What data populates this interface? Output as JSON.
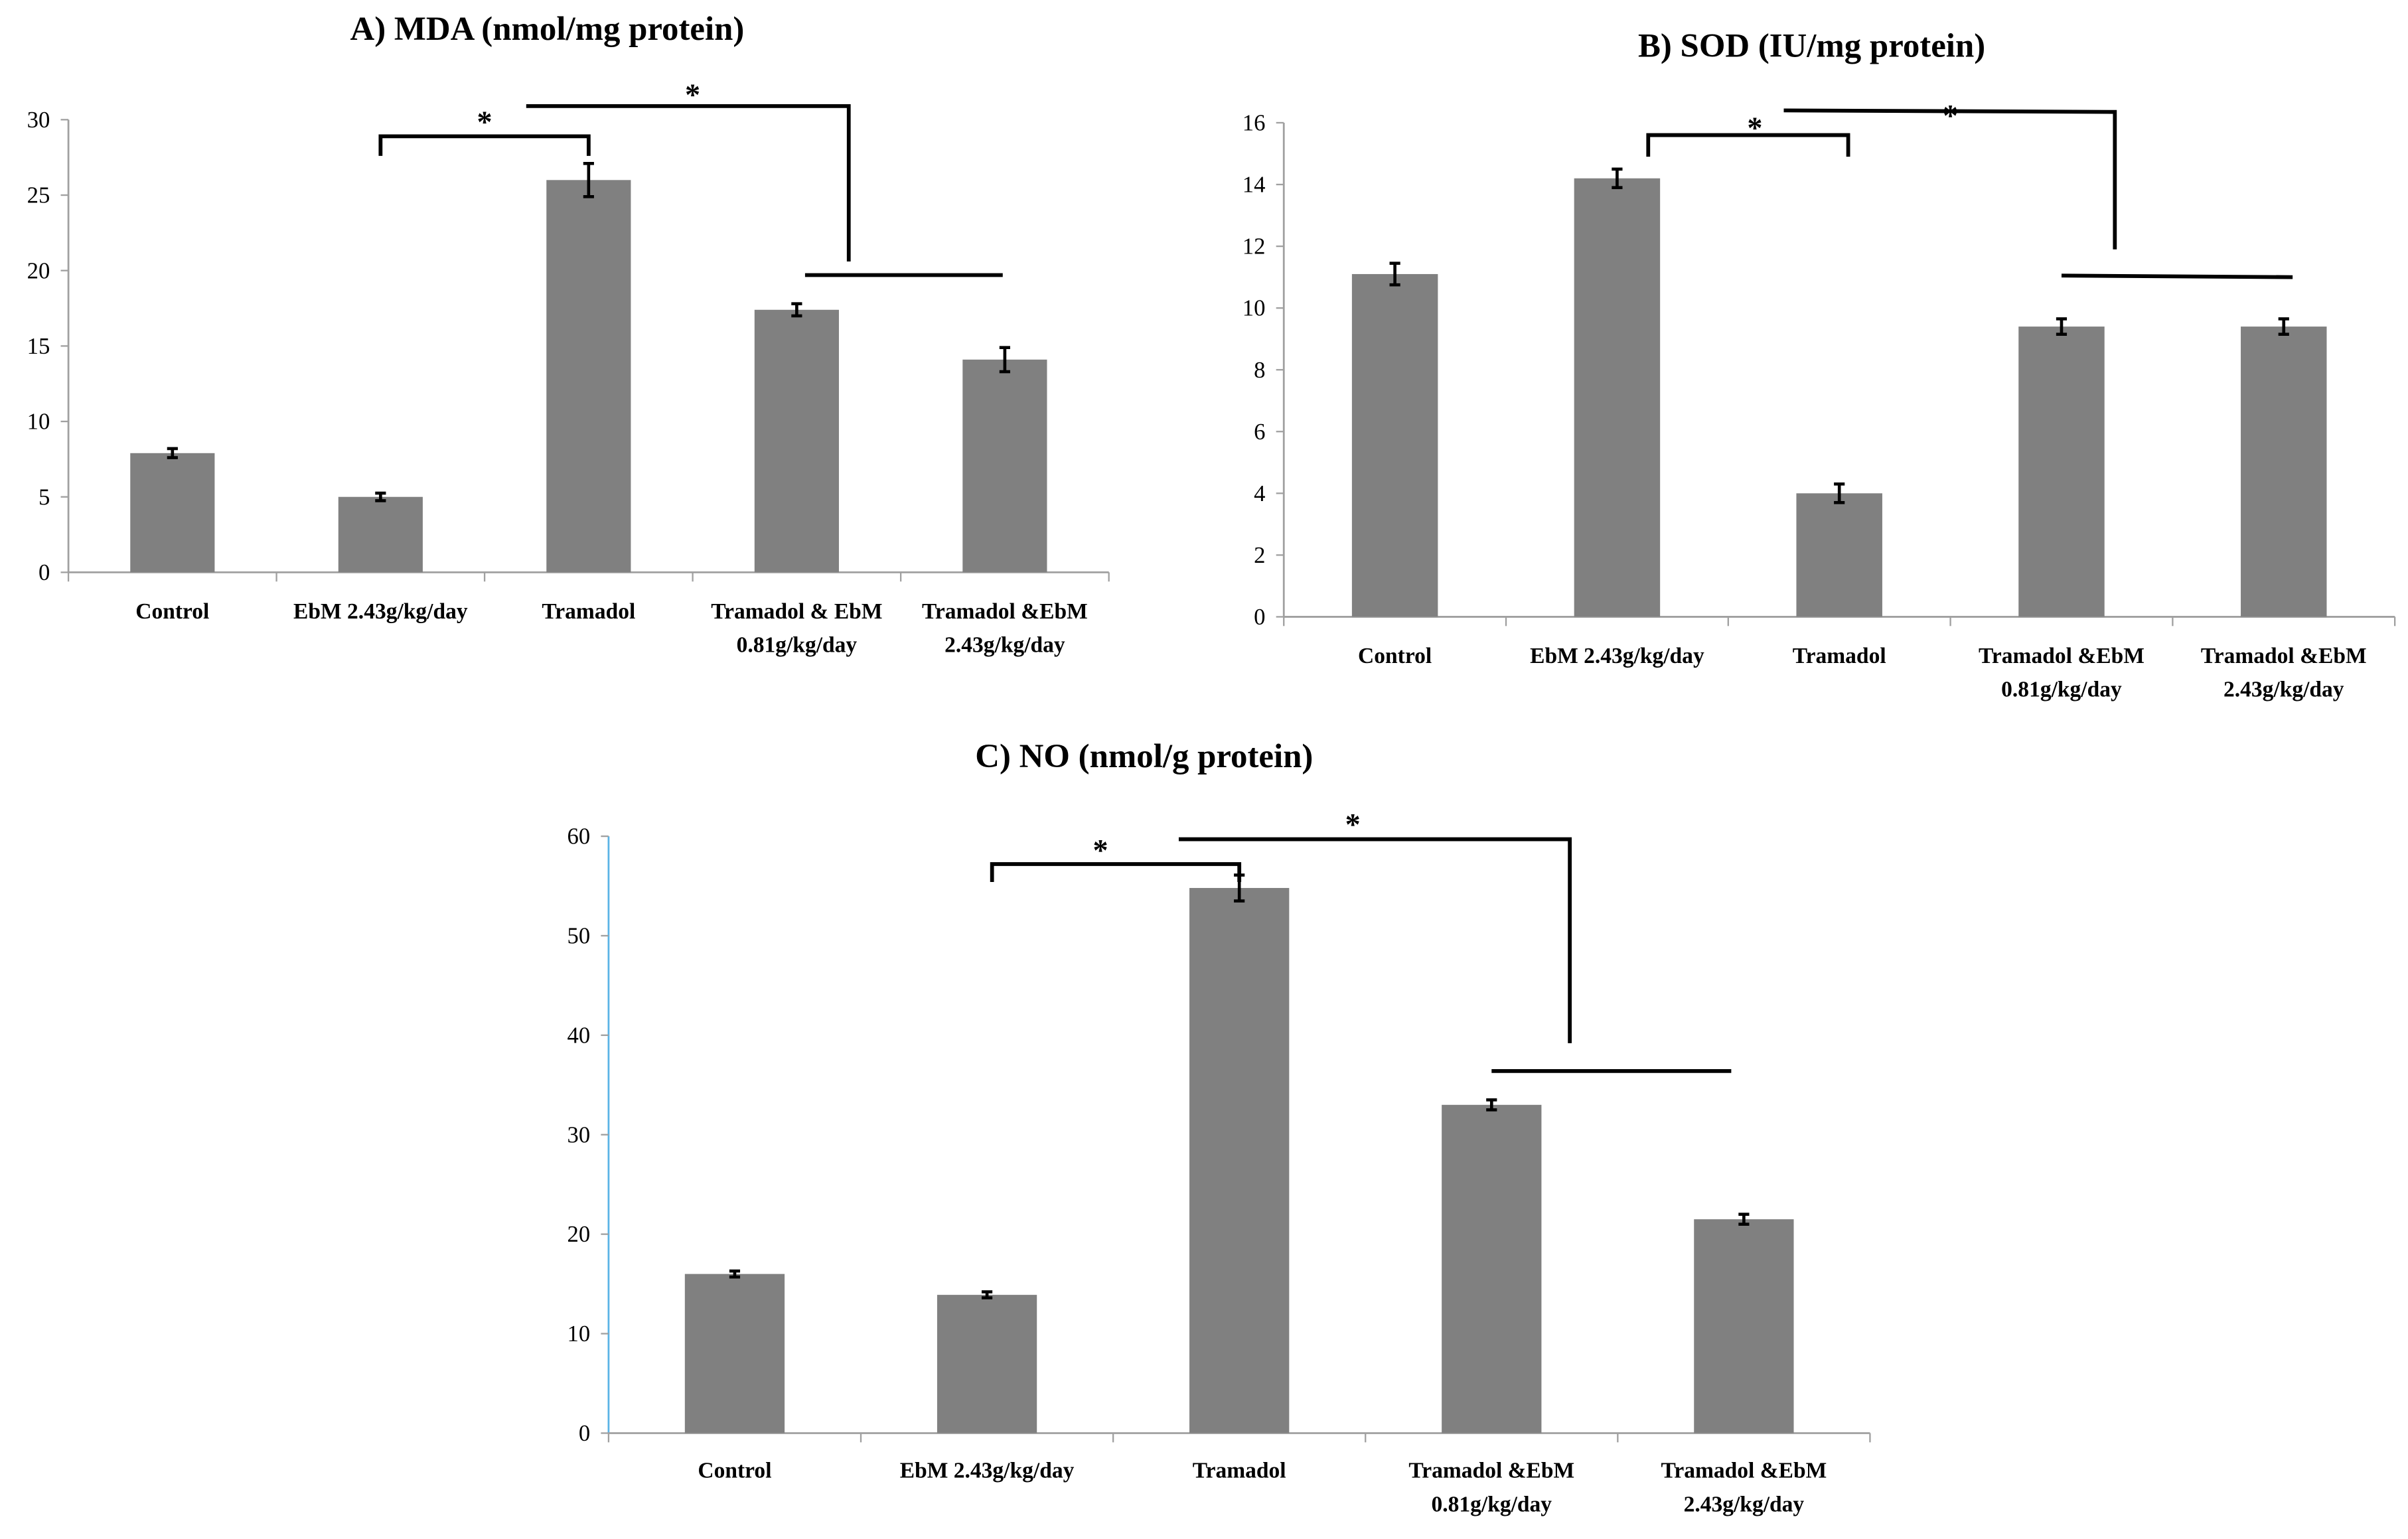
{
  "chart_data": [
    {
      "type": "bar",
      "title": "A) MDA (nmol/mg protein)",
      "xlabel": "",
      "ylabel": "",
      "categories": [
        [
          "Control"
        ],
        [
          "EbM 2.43g/kg/day"
        ],
        [
          "Tramadol"
        ],
        [
          "Tramadol & EbM",
          "0.81g/kg/day"
        ],
        [
          "Tramadol &EbM",
          "2.43g/kg/day"
        ]
      ],
      "values": [
        7.9,
        5.0,
        26.0,
        17.4,
        14.1
      ],
      "errors": [
        0.3,
        0.25,
        1.1,
        0.4,
        0.8
      ],
      "ylim": [
        0,
        30
      ],
      "yticks": [
        0,
        5,
        10,
        15,
        20,
        25,
        30
      ],
      "grid": false,
      "bar_color": "#808080",
      "axis_color": "#a0a0a0",
      "annotations": [
        {
          "label": "*",
          "label_at": [
            1.5,
            30.0
          ],
          "path": [
            [
              1,
              27.6
            ],
            [
              1,
              28.9
            ],
            [
              2,
              28.9
            ],
            [
              2,
              27.6
            ]
          ]
        },
        {
          "label": "*",
          "label_at": [
            2.5,
            31.8
          ],
          "path": [
            [
              1.7,
              30.9
            ],
            [
              3.25,
              30.9
            ],
            [
              3.25,
              20.6
            ]
          ]
        },
        {
          "label": "",
          "path": [
            [
              3.04,
              19.7
            ],
            [
              3.99,
              19.7
            ]
          ]
        }
      ]
    },
    {
      "type": "bar",
      "title": "B) SOD (IU/mg protein)",
      "xlabel": "",
      "ylabel": "",
      "categories": [
        [
          "Control"
        ],
        [
          "EbM 2.43g/kg/day"
        ],
        [
          "Tramadol"
        ],
        [
          "Tramadol &EbM",
          "0.81g/kg/day"
        ],
        [
          "Tramadol &EbM",
          "2.43g/kg/day"
        ]
      ],
      "values": [
        11.1,
        14.2,
        4.0,
        9.4,
        9.4
      ],
      "errors": [
        0.35,
        0.3,
        0.3,
        0.25,
        0.25
      ],
      "ylim": [
        0,
        16
      ],
      "yticks": [
        0,
        2,
        4,
        6,
        8,
        10,
        12,
        14,
        16
      ],
      "grid": false,
      "bar_color": "#808080",
      "axis_color": "#a0a0a0",
      "annotations": [
        {
          "label": "*",
          "label_at": [
            1.62,
            15.9
          ],
          "path": [
            [
              1.14,
              14.9
            ],
            [
              1.14,
              15.6
            ],
            [
              2.04,
              15.6
            ],
            [
              2.04,
              14.9
            ]
          ]
        },
        {
          "label": "*",
          "label_at": [
            2.5,
            16.3
          ],
          "path": [
            [
              1.75,
              16.4
            ],
            [
              3.24,
              16.35
            ],
            [
              3.24,
              11.9
            ]
          ]
        },
        {
          "label": "",
          "path": [
            [
              3.0,
              11.05
            ],
            [
              4.04,
              11.0
            ]
          ]
        }
      ]
    },
    {
      "type": "bar",
      "title": "C) NO (nmol/g protein)",
      "xlabel": "",
      "ylabel": "",
      "categories": [
        [
          "Control"
        ],
        [
          "EbM 2.43g/kg/day"
        ],
        [
          "Tramadol"
        ],
        [
          "Tramadol &EbM",
          "0.81g/kg/day"
        ],
        [
          "Tramadol &EbM",
          "2.43g/kg/day"
        ]
      ],
      "values": [
        16.0,
        13.9,
        54.8,
        33.0,
        21.5
      ],
      "errors": [
        0.3,
        0.3,
        1.3,
        0.5,
        0.5
      ],
      "ylim": [
        0,
        60
      ],
      "yticks": [
        0,
        10,
        20,
        30,
        40,
        50,
        60
      ],
      "grid": false,
      "bar_color": "#808080",
      "axis_color": "#5bb4e6",
      "annotations": [
        {
          "label": "*",
          "label_at": [
            1.45,
            58.8
          ],
          "path": [
            [
              1.02,
              55.4
            ],
            [
              1.02,
              57.2
            ],
            [
              2.0,
              57.2
            ],
            [
              2.0,
              55.4
            ]
          ]
        },
        {
          "label": "*",
          "label_at": [
            2.45,
            61.4
          ],
          "path": [
            [
              1.76,
              59.7
            ],
            [
              3.31,
              59.7
            ],
            [
              3.31,
              39.2
            ]
          ]
        },
        {
          "label": "",
          "path": [
            [
              3.0,
              36.4
            ],
            [
              3.95,
              36.4
            ]
          ]
        }
      ]
    }
  ]
}
